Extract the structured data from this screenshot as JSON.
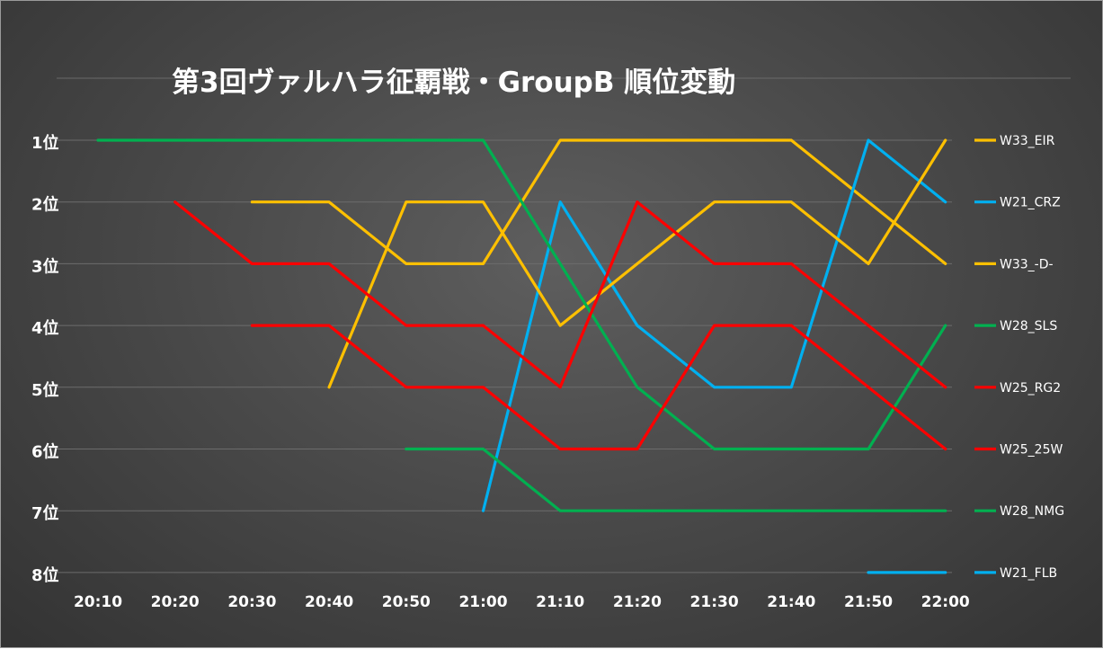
{
  "chart_data": {
    "type": "line",
    "title": "第3回ヴァルハラ征覇戦・GroupB 順位変動",
    "x": [
      "20:10",
      "20:20",
      "20:30",
      "20:40",
      "20:50",
      "21:00",
      "21:10",
      "21:20",
      "21:30",
      "21:40",
      "21:50",
      "22:00"
    ],
    "y_ticks": [
      "1位",
      "2位",
      "3位",
      "4位",
      "5位",
      "6位",
      "7位",
      "8位"
    ],
    "y_range": [
      1,
      8
    ],
    "y_inverted": true,
    "grid": "horizontal",
    "legend_position": "right",
    "series": [
      {
        "name": "W33_EIR",
        "color": "#FFC000",
        "values": [
          null,
          null,
          2,
          2,
          3,
          3,
          1,
          1,
          1,
          1,
          2,
          3
        ]
      },
      {
        "name": "W21_CRZ",
        "color": "#00B0F0",
        "values": [
          null,
          null,
          null,
          null,
          null,
          7,
          2,
          4,
          5,
          5,
          1,
          2
        ]
      },
      {
        "name": "W33_-D-",
        "color": "#FFC000",
        "values": [
          null,
          null,
          null,
          5,
          2,
          2,
          4,
          3,
          2,
          2,
          3,
          1
        ]
      },
      {
        "name": "W28_SLS",
        "color": "#00B050",
        "values": [
          1,
          1,
          1,
          1,
          1,
          1,
          3,
          5,
          6,
          6,
          6,
          4
        ]
      },
      {
        "name": "W25_RG2",
        "color": "#FF0000",
        "values": [
          null,
          null,
          4,
          4,
          5,
          5,
          6,
          6,
          4,
          4,
          5,
          6
        ]
      },
      {
        "name": "W25_25W",
        "color": "#FF0000",
        "values": [
          null,
          2,
          3,
          3,
          4,
          4,
          5,
          2,
          3,
          3,
          4,
          5
        ]
      },
      {
        "name": "W28_NMG",
        "color": "#00B050",
        "values": [
          null,
          null,
          null,
          null,
          6,
          6,
          7,
          7,
          7,
          7,
          7,
          7
        ]
      },
      {
        "name": "W21_FLB",
        "color": "#00B0F0",
        "values": [
          null,
          null,
          null,
          null,
          null,
          null,
          null,
          null,
          null,
          null,
          8,
          8
        ]
      }
    ]
  }
}
